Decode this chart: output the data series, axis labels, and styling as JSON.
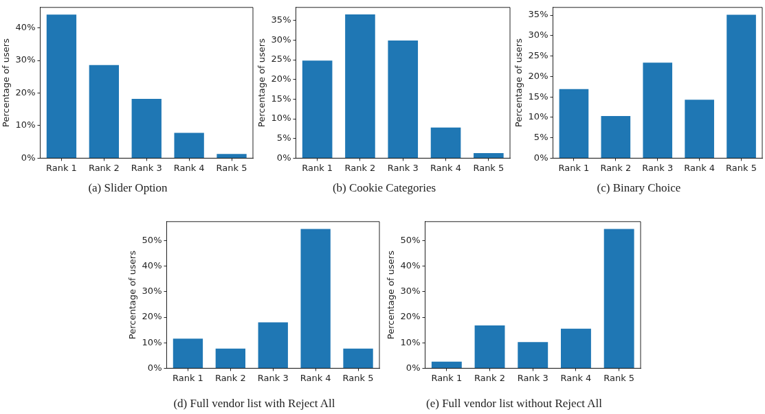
{
  "chart_data": [
    {
      "type": "bar",
      "title": "(a)  Slider Option",
      "ylabel": "Percentage of users",
      "categories": [
        "Rank 1",
        "Rank 2",
        "Rank 3",
        "Rank 4",
        "Rank 5"
      ],
      "values": [
        44.1,
        28.6,
        18.2,
        7.8,
        1.3
      ],
      "color": "#1f77b4",
      "ylim": [
        0,
        46.3
      ],
      "yticks": [
        {
          "value": 0,
          "label": "0%"
        },
        {
          "value": 10,
          "label": "10%"
        },
        {
          "value": 20,
          "label": "20%"
        },
        {
          "value": 30,
          "label": "30%"
        },
        {
          "value": 40,
          "label": "40%"
        }
      ],
      "grid": false,
      "legend": false
    },
    {
      "type": "bar",
      "title": "(b)  Cookie Categories",
      "ylabel": "Percentage of users",
      "categories": [
        "Rank 1",
        "Rank 2",
        "Rank 3",
        "Rank 4",
        "Rank 5"
      ],
      "values": [
        24.8,
        36.5,
        29.9,
        7.8,
        1.3
      ],
      "color": "#1f77b4",
      "ylim": [
        0,
        38.3
      ],
      "yticks": [
        {
          "value": 0,
          "label": "0%"
        },
        {
          "value": 5,
          "label": "5%"
        },
        {
          "value": 10,
          "label": "10%"
        },
        {
          "value": 15,
          "label": "15%"
        },
        {
          "value": 20,
          "label": "20%"
        },
        {
          "value": 25,
          "label": "25%"
        },
        {
          "value": 30,
          "label": "30%"
        },
        {
          "value": 35,
          "label": "35%"
        }
      ],
      "grid": false,
      "legend": false
    },
    {
      "type": "bar",
      "title": "(c)  Binary Choice",
      "ylabel": "Percentage of users",
      "categories": [
        "Rank 1",
        "Rank 2",
        "Rank 3",
        "Rank 4",
        "Rank 5"
      ],
      "values": [
        16.9,
        10.3,
        23.4,
        14.3,
        35.1
      ],
      "color": "#1f77b4",
      "ylim": [
        0,
        36.9
      ],
      "yticks": [
        {
          "value": 0,
          "label": "0%"
        },
        {
          "value": 5,
          "label": "5%"
        },
        {
          "value": 10,
          "label": "10%"
        },
        {
          "value": 15,
          "label": "15%"
        },
        {
          "value": 20,
          "label": "20%"
        },
        {
          "value": 25,
          "label": "25%"
        },
        {
          "value": 30,
          "label": "30%"
        },
        {
          "value": 35,
          "label": "35%"
        }
      ],
      "grid": false,
      "legend": false
    },
    {
      "type": "bar",
      "title": "(d)  Full vendor list with Reject All",
      "ylabel": "Percentage of users",
      "categories": [
        "Rank 1",
        "Rank 2",
        "Rank 3",
        "Rank 4",
        "Rank 5"
      ],
      "values": [
        11.6,
        7.7,
        18.0,
        54.6,
        7.7
      ],
      "color": "#1f77b4",
      "ylim": [
        0,
        57.5
      ],
      "yticks": [
        {
          "value": 0,
          "label": "0%"
        },
        {
          "value": 10,
          "label": "10%"
        },
        {
          "value": 20,
          "label": "20%"
        },
        {
          "value": 30,
          "label": "30%"
        },
        {
          "value": 40,
          "label": "40%"
        },
        {
          "value": 50,
          "label": "50%"
        }
      ],
      "grid": false,
      "legend": false
    },
    {
      "type": "bar",
      "title": "(e)  Full vendor list without Reject All",
      "ylabel": "Percentage of users",
      "categories": [
        "Rank 1",
        "Rank 2",
        "Rank 3",
        "Rank 4",
        "Rank 5"
      ],
      "values": [
        2.6,
        16.8,
        10.3,
        15.5,
        54.6
      ],
      "color": "#1f77b4",
      "ylim": [
        0,
        57.5
      ],
      "yticks": [
        {
          "value": 0,
          "label": "0%"
        },
        {
          "value": 10,
          "label": "10%"
        },
        {
          "value": 20,
          "label": "20%"
        },
        {
          "value": 30,
          "label": "30%"
        },
        {
          "value": 40,
          "label": "40%"
        },
        {
          "value": 50,
          "label": "50%"
        }
      ],
      "grid": false,
      "legend": false
    }
  ]
}
